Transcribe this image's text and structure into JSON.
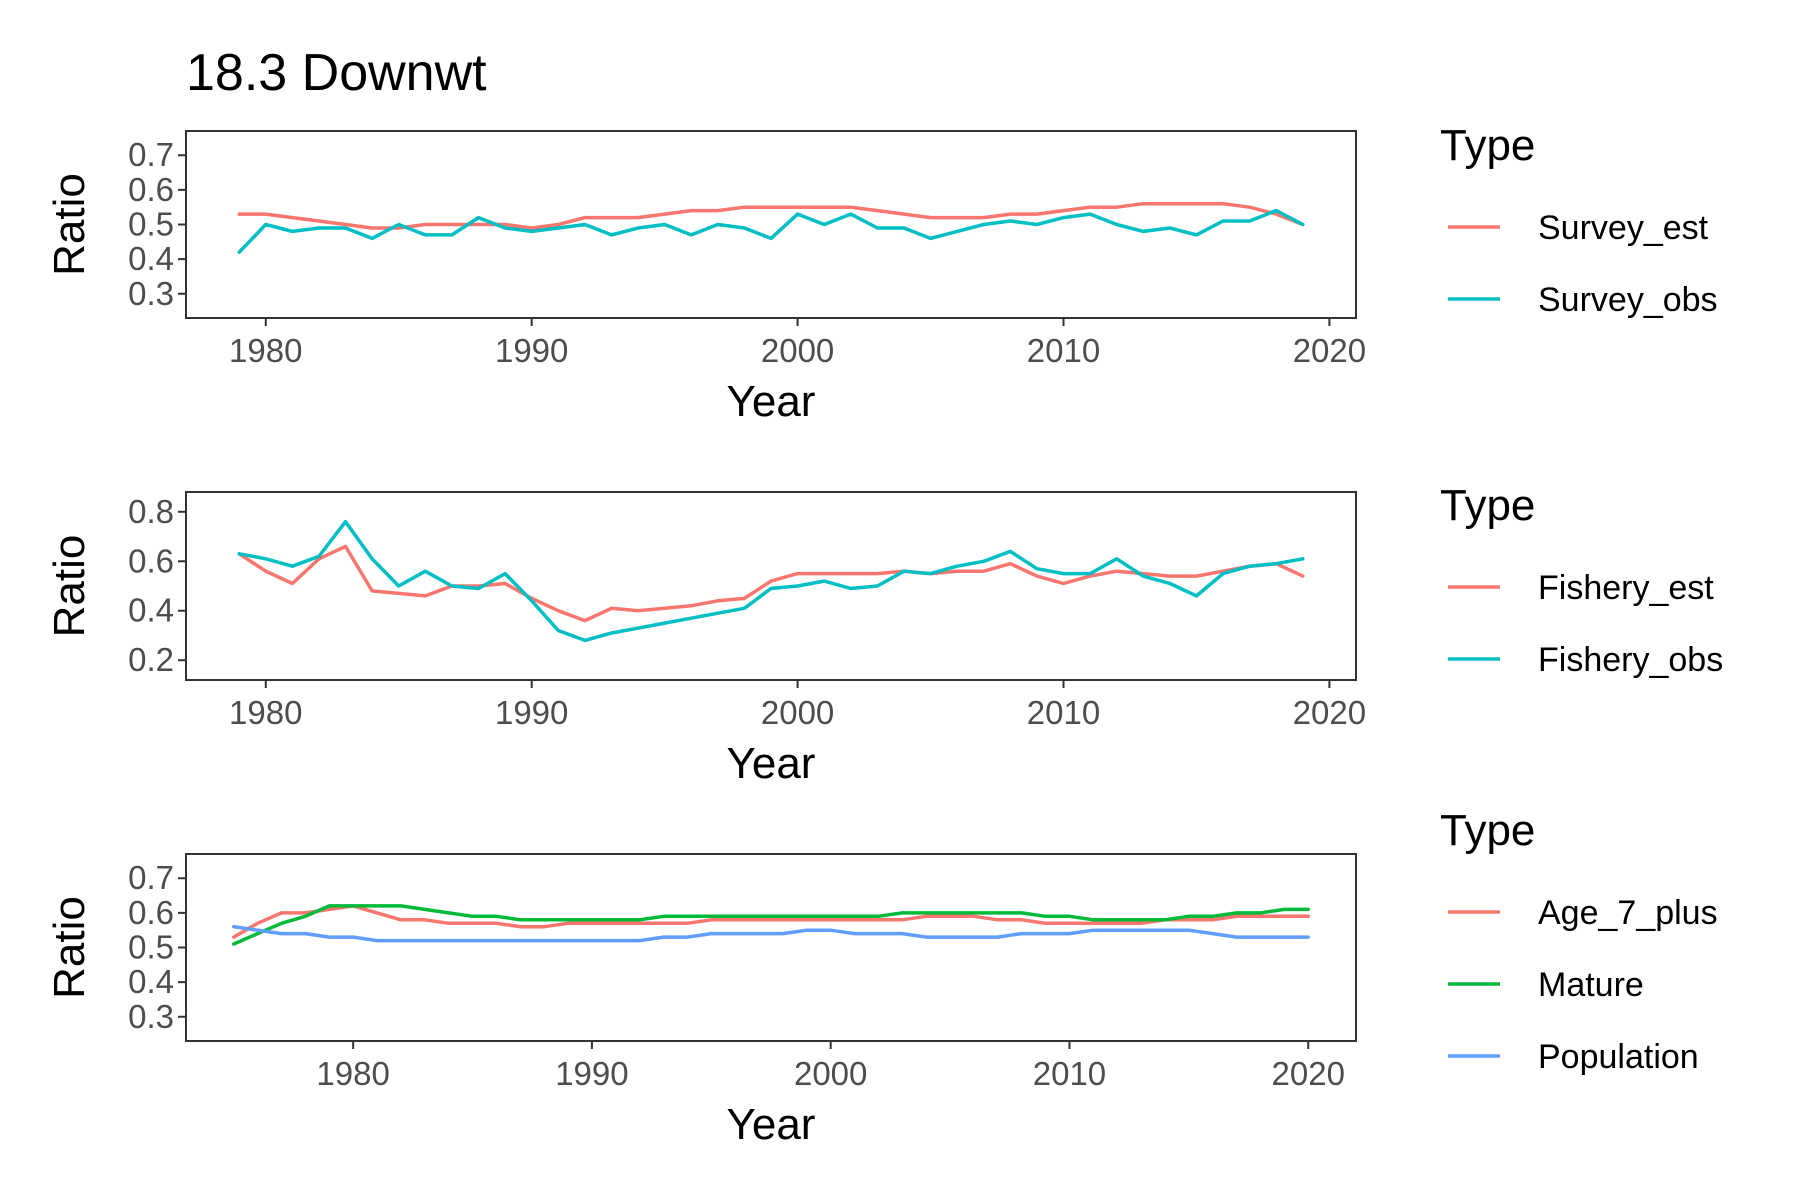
{
  "title": "18.3 Downwt",
  "chart_data": [
    {
      "type": "line",
      "xlabel": "Year",
      "ylabel": "Ratio",
      "xlim": [
        1977,
        2021
      ],
      "ylim": [
        0.23,
        0.77
      ],
      "x_ticks": [
        1980,
        1990,
        2000,
        2010,
        2020
      ],
      "y_ticks": [
        0.3,
        0.4,
        0.5,
        0.6,
        0.7
      ],
      "grid": false,
      "legend": {
        "title": "Type",
        "position": "right"
      },
      "x": [
        1979,
        1980,
        1981,
        1982,
        1983,
        1984,
        1985,
        1986,
        1987,
        1988,
        1989,
        1990,
        1991,
        1992,
        1993,
        1994,
        1995,
        1996,
        1997,
        1998,
        1999,
        2000,
        2001,
        2002,
        2003,
        2004,
        2005,
        2006,
        2007,
        2008,
        2009,
        2010,
        2011,
        2012,
        2013,
        2014,
        2015,
        2016,
        2017,
        2018,
        2019
      ],
      "series": [
        {
          "name": "Survey_est",
          "color": "#F8766D",
          "values": [
            0.53,
            0.53,
            0.52,
            0.51,
            0.5,
            0.49,
            0.49,
            0.5,
            0.5,
            0.5,
            0.5,
            0.49,
            0.5,
            0.52,
            0.52,
            0.52,
            0.53,
            0.54,
            0.54,
            0.55,
            0.55,
            0.55,
            0.55,
            0.55,
            0.54,
            0.53,
            0.52,
            0.52,
            0.52,
            0.53,
            0.53,
            0.54,
            0.55,
            0.55,
            0.56,
            0.56,
            0.56,
            0.56,
            0.55,
            0.53,
            0.5
          ]
        },
        {
          "name": "Survey_obs",
          "color": "#00BFC4",
          "values": [
            0.42,
            0.5,
            0.48,
            0.49,
            0.49,
            0.46,
            0.5,
            0.47,
            0.47,
            0.52,
            0.49,
            0.48,
            0.49,
            0.5,
            0.47,
            0.49,
            0.5,
            0.47,
            0.5,
            0.49,
            0.46,
            0.53,
            0.5,
            0.53,
            0.49,
            0.49,
            0.46,
            0.48,
            0.5,
            0.51,
            0.5,
            0.52,
            0.53,
            0.5,
            0.48,
            0.49,
            0.47,
            0.51,
            0.51,
            0.54,
            0.5
          ]
        }
      ]
    },
    {
      "type": "line",
      "xlabel": "Year",
      "ylabel": "Ratio",
      "xlim": [
        1977,
        2021
      ],
      "ylim": [
        0.12,
        0.88
      ],
      "x_ticks": [
        1980,
        1990,
        2000,
        2010,
        2020
      ],
      "y_ticks": [
        0.2,
        0.4,
        0.6,
        0.8
      ],
      "grid": false,
      "legend": {
        "title": "Type",
        "position": "right"
      },
      "x": [
        1979,
        1980,
        1981,
        1982,
        1983,
        1984,
        1985,
        1986,
        1987,
        1988,
        1989,
        1990,
        1991,
        1992,
        1993,
        1994,
        1995,
        1996,
        1997,
        1998,
        1999,
        2000,
        2001,
        2002,
        2003,
        2004,
        2005,
        2006,
        2007,
        2008,
        2009,
        2010,
        2011,
        2012,
        2013,
        2014,
        2015,
        2016,
        2017,
        2018,
        2019
      ],
      "series": [
        {
          "name": "Fishery_est",
          "color": "#F8766D",
          "values": [
            0.63,
            0.56,
            0.51,
            0.61,
            0.66,
            0.48,
            0.47,
            0.46,
            0.5,
            0.5,
            0.51,
            0.45,
            0.4,
            0.36,
            0.41,
            0.4,
            0.41,
            0.42,
            0.44,
            0.45,
            0.52,
            0.55,
            0.55,
            0.55,
            0.55,
            0.56,
            0.55,
            0.56,
            0.56,
            0.59,
            0.54,
            0.51,
            0.54,
            0.56,
            0.55,
            0.54,
            0.54,
            0.56,
            0.58,
            0.59,
            0.54
          ]
        },
        {
          "name": "Fishery_obs",
          "color": "#00BFC4",
          "values": [
            0.63,
            0.61,
            0.58,
            0.62,
            0.76,
            0.61,
            0.5,
            0.56,
            0.5,
            0.49,
            0.55,
            0.44,
            0.32,
            0.28,
            0.31,
            0.33,
            0.35,
            0.37,
            0.39,
            0.41,
            0.49,
            0.5,
            0.52,
            0.49,
            0.5,
            0.56,
            0.55,
            0.58,
            0.6,
            0.64,
            0.57,
            0.55,
            0.55,
            0.61,
            0.54,
            0.51,
            0.46,
            0.55,
            0.58,
            0.59,
            0.61
          ]
        }
      ]
    },
    {
      "type": "line",
      "xlabel": "Year",
      "ylabel": "Ratio",
      "xlim": [
        1973,
        2022
      ],
      "ylim": [
        0.23,
        0.77
      ],
      "x_ticks": [
        1980,
        1990,
        2000,
        2010,
        2020
      ],
      "y_ticks": [
        0.3,
        0.4,
        0.5,
        0.6,
        0.7
      ],
      "grid": false,
      "legend": {
        "title": "Type",
        "position": "right"
      },
      "x": [
        1975,
        1976,
        1977,
        1978,
        1979,
        1980,
        1981,
        1982,
        1983,
        1984,
        1985,
        1986,
        1987,
        1988,
        1989,
        1990,
        1991,
        1992,
        1993,
        1994,
        1995,
        1996,
        1997,
        1998,
        1999,
        2000,
        2001,
        2002,
        2003,
        2004,
        2005,
        2006,
        2007,
        2008,
        2009,
        2010,
        2011,
        2012,
        2013,
        2014,
        2015,
        2016,
        2017,
        2018,
        2019,
        2020
      ],
      "series": [
        {
          "name": "Age_7_plus",
          "color": "#F8766D",
          "values": [
            0.53,
            0.57,
            0.6,
            0.6,
            0.61,
            0.62,
            0.6,
            0.58,
            0.58,
            0.57,
            0.57,
            0.57,
            0.56,
            0.56,
            0.57,
            0.57,
            0.57,
            0.57,
            0.57,
            0.57,
            0.58,
            0.58,
            0.58,
            0.58,
            0.58,
            0.58,
            0.58,
            0.58,
            0.58,
            0.59,
            0.59,
            0.59,
            0.58,
            0.58,
            0.57,
            0.57,
            0.57,
            0.57,
            0.57,
            0.58,
            0.58,
            0.58,
            0.59,
            0.59,
            0.59,
            0.59
          ]
        },
        {
          "name": "Mature",
          "color": "#00BA38",
          "values": [
            0.51,
            0.54,
            0.57,
            0.59,
            0.62,
            0.62,
            0.62,
            0.62,
            0.61,
            0.6,
            0.59,
            0.59,
            0.58,
            0.58,
            0.58,
            0.58,
            0.58,
            0.58,
            0.59,
            0.59,
            0.59,
            0.59,
            0.59,
            0.59,
            0.59,
            0.59,
            0.59,
            0.59,
            0.6,
            0.6,
            0.6,
            0.6,
            0.6,
            0.6,
            0.59,
            0.59,
            0.58,
            0.58,
            0.58,
            0.58,
            0.59,
            0.59,
            0.6,
            0.6,
            0.61,
            0.61
          ]
        },
        {
          "name": "Population",
          "color": "#619CFF",
          "values": [
            0.56,
            0.55,
            0.54,
            0.54,
            0.53,
            0.53,
            0.52,
            0.52,
            0.52,
            0.52,
            0.52,
            0.52,
            0.52,
            0.52,
            0.52,
            0.52,
            0.52,
            0.52,
            0.53,
            0.53,
            0.54,
            0.54,
            0.54,
            0.54,
            0.55,
            0.55,
            0.54,
            0.54,
            0.54,
            0.53,
            0.53,
            0.53,
            0.53,
            0.54,
            0.54,
            0.54,
            0.55,
            0.55,
            0.55,
            0.55,
            0.55,
            0.54,
            0.53,
            0.53,
            0.53,
            0.53
          ]
        }
      ]
    }
  ]
}
